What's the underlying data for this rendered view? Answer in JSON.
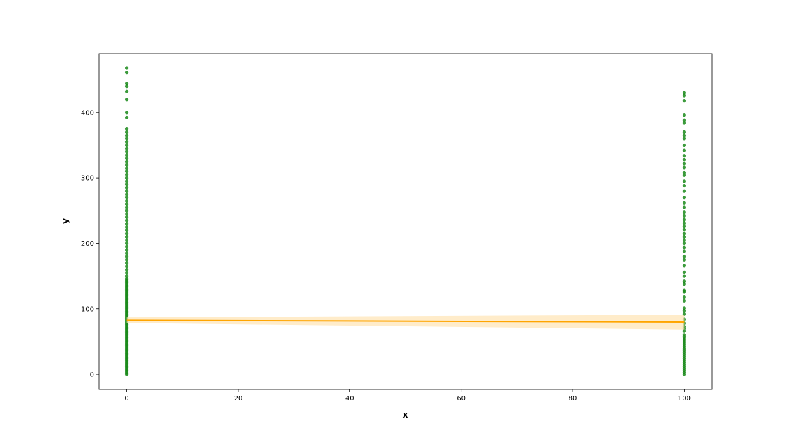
{
  "chart_data": {
    "type": "scatter",
    "title": "",
    "xlabel": "x",
    "ylabel": "y",
    "xlim": [
      -5,
      105
    ],
    "ylim": [
      -23,
      490
    ],
    "x_ticks": [
      0,
      20,
      40,
      60,
      80,
      100
    ],
    "y_ticks": [
      0,
      100,
      200,
      300,
      400
    ],
    "grid": false,
    "colors": {
      "points": "#1a8a1a",
      "regression_line": "#ffa500",
      "confidence_band": "#ffe4b3"
    },
    "series": [
      {
        "x": 0,
        "values": [
          0,
          2,
          4,
          6,
          8,
          10,
          12,
          14,
          16,
          18,
          20,
          22,
          24,
          26,
          28,
          30,
          32,
          34,
          36,
          38,
          40,
          42,
          44,
          46,
          48,
          50,
          52,
          54,
          56,
          58,
          60,
          62,
          64,
          66,
          68,
          70,
          72,
          74,
          76,
          78,
          80,
          82,
          84,
          86,
          88,
          90,
          92,
          94,
          96,
          98,
          100,
          102,
          104,
          106,
          108,
          110,
          112,
          114,
          116,
          118,
          120,
          122,
          124,
          126,
          128,
          130,
          132,
          134,
          136,
          138,
          140,
          142,
          144,
          146,
          150,
          155,
          160,
          165,
          170,
          175,
          180,
          185,
          190,
          195,
          200,
          205,
          210,
          215,
          220,
          225,
          230,
          235,
          240,
          245,
          250,
          255,
          260,
          265,
          270,
          275,
          280,
          285,
          290,
          295,
          300,
          305,
          310,
          315,
          320,
          325,
          330,
          335,
          340,
          345,
          350,
          355,
          360,
          365,
          370,
          375,
          392,
          400,
          420,
          432,
          440,
          444,
          461,
          468
        ]
      },
      {
        "x": 100,
        "values": [
          0,
          3,
          6,
          9,
          12,
          15,
          18,
          21,
          24,
          27,
          30,
          33,
          36,
          39,
          42,
          45,
          48,
          51,
          54,
          57,
          60,
          66,
          70,
          73,
          78,
          84,
          92,
          97,
          101,
          112,
          118,
          126,
          128,
          138,
          142,
          150,
          156,
          166,
          175,
          180,
          188,
          194,
          200,
          205,
          210,
          215,
          221,
          226,
          231,
          236,
          242,
          248,
          255,
          262,
          270,
          280,
          288,
          295,
          304,
          308,
          316,
          322,
          328,
          334,
          342,
          350,
          360,
          365,
          370,
          384,
          388,
          396,
          418,
          426,
          430
        ]
      }
    ],
    "regression": {
      "x": [
        0,
        100
      ],
      "y": [
        82.6,
        79.8
      ],
      "ci_lower": [
        78.5,
        68.5
      ],
      "ci_upper": [
        87,
        91
      ]
    }
  }
}
